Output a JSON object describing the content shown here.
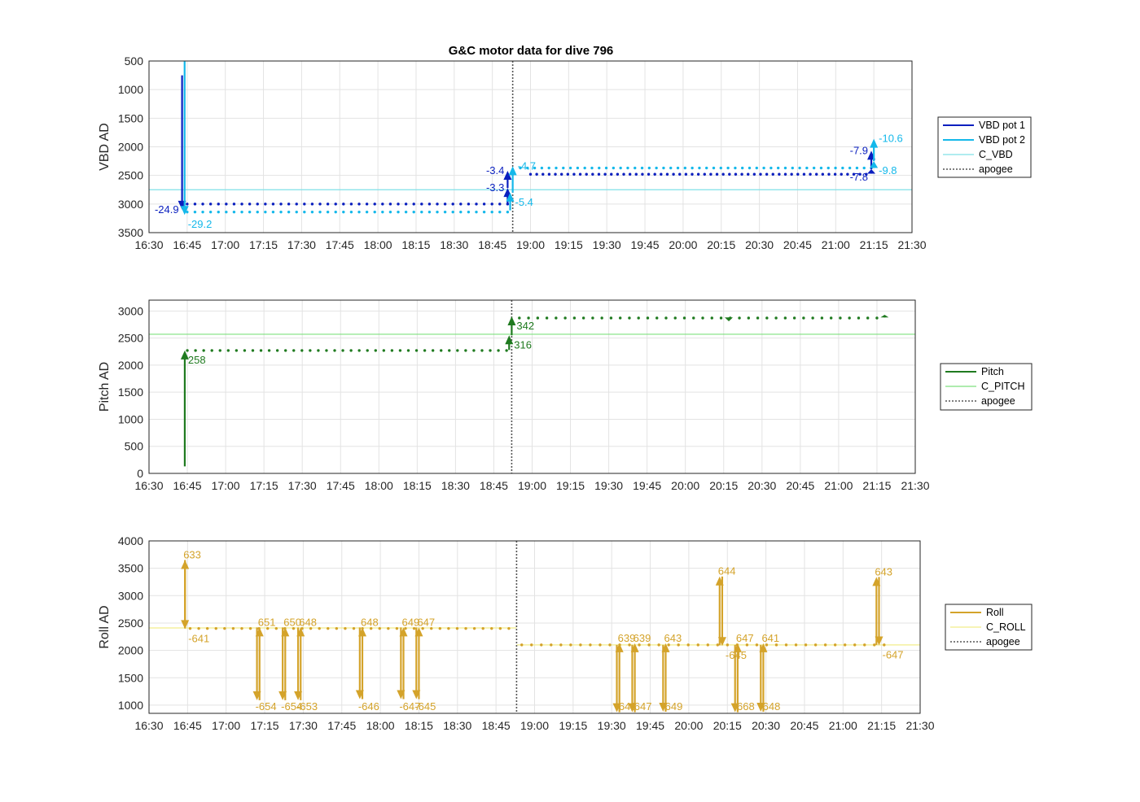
{
  "colors": {
    "vbd_pot1": "#0a1fbf",
    "vbd_pot2": "#14b8ea",
    "c_vbd": "#7fe0e8",
    "pitch": "#1f7a1f",
    "c_pitch": "#7ee07e",
    "roll": "#d4a32a",
    "c_roll": "#f2ee8a",
    "apogee": "#555555",
    "grid": "#e3e3e3"
  },
  "chart_data": [
    {
      "type": "line",
      "title": "G&C motor data for dive 796",
      "ylabel": "VBD AD",
      "xlabel": "",
      "xlim": [
        "16:30",
        "21:30"
      ],
      "xticks": [
        "16:30",
        "16:45",
        "17:00",
        "17:15",
        "17:30",
        "17:45",
        "18:00",
        "18:15",
        "18:30",
        "18:45",
        "19:00",
        "19:15",
        "19:30",
        "19:45",
        "20:00",
        "20:15",
        "20:30",
        "20:45",
        "21:00",
        "21:15",
        "21:30"
      ],
      "ylim": [
        500,
        3500
      ],
      "y_reversed": true,
      "yticks": [
        "500",
        "1000",
        "1500",
        "2000",
        "2500",
        "3000",
        "3500"
      ],
      "grid": true,
      "legend_position": "right",
      "legend": [
        "VBD pot 1",
        "VBD pot 2",
        "C_VBD",
        "apogee"
      ],
      "apogee_time": "18:53",
      "series": [
        {
          "name": "VBD pot 1",
          "color_key": "vbd_pot1",
          "dots": {
            "from": "16:45",
            "to": "18:51",
            "value": 3000,
            "count": 42
          },
          "dots2": {
            "from": "19:00",
            "to": "21:12",
            "value": 2480,
            "count": 55
          }
        },
        {
          "name": "VBD pot 2",
          "color_key": "vbd_pot2",
          "dots": {
            "from": "16:45",
            "to": "18:51",
            "value": 3140,
            "count": 42
          },
          "dots2": {
            "from": "18:56",
            "to": "21:14",
            "value": 2370,
            "count": 50
          }
        },
        {
          "name": "C_VBD",
          "color_key": "c_vbd",
          "hline": 2750
        }
      ],
      "moves": [
        {
          "series": "VBD pot 1",
          "time": "16:43",
          "from": 750,
          "to": 3100,
          "label": "-24.9",
          "label_side": "left"
        },
        {
          "series": "VBD pot 2",
          "time": "16:44",
          "from": 500,
          "to": 3190,
          "label": "-29.2",
          "label_side": "below"
        },
        {
          "series": "VBD pot 1",
          "time": "18:51",
          "from": 3000,
          "to": 2720,
          "label": "-3.3",
          "label_side": "left"
        },
        {
          "series": "VBD pot 1",
          "time": "18:51",
          "from": 2720,
          "to": 2420,
          "label": "-3.4",
          "label_side": "left"
        },
        {
          "series": "VBD pot 2",
          "time": "18:52",
          "from": 3110,
          "to": 2800,
          "label": "-5.4",
          "label_side": "right_low"
        },
        {
          "series": "VBD pot 2",
          "time": "18:53",
          "from": 2800,
          "to": 2340,
          "label": "-4.7",
          "label_side": "right"
        },
        {
          "series": "VBD pot 1",
          "time": "21:14",
          "from": 2470,
          "to": 2390,
          "label": "-7.8",
          "label_side": "left_low"
        },
        {
          "series": "VBD pot 1",
          "time": "21:14",
          "from": 2390,
          "to": 2070,
          "label": "-7.9",
          "label_side": "left"
        },
        {
          "series": "VBD pot 2",
          "time": "21:15",
          "from": 2370,
          "to": 2250,
          "label": "-9.8",
          "label_side": "right_low"
        },
        {
          "series": "VBD pot 2",
          "time": "21:15",
          "from": 2250,
          "to": 1860,
          "label": "-10.6",
          "label_side": "right"
        }
      ]
    },
    {
      "type": "line",
      "title": "",
      "ylabel": "Pitch AD",
      "xlabel": "",
      "xlim": [
        "16:30",
        "21:30"
      ],
      "xticks": [
        "16:30",
        "16:45",
        "17:00",
        "17:15",
        "17:30",
        "17:45",
        "18:00",
        "18:15",
        "18:30",
        "18:45",
        "19:00",
        "19:15",
        "19:30",
        "19:45",
        "20:00",
        "20:15",
        "20:30",
        "20:45",
        "21:00",
        "21:15",
        "21:30"
      ],
      "ylim": [
        0,
        3200
      ],
      "y_reversed": false,
      "yticks": [
        "0",
        "500",
        "1000",
        "1500",
        "2000",
        "2500",
        "3000"
      ],
      "grid": true,
      "legend_position": "right",
      "legend": [
        "Pitch",
        "C_PITCH",
        "apogee"
      ],
      "apogee_time": "18:52",
      "series": [
        {
          "name": "Pitch",
          "color_key": "pitch",
          "dots": {
            "from": "16:45",
            "to": "18:50",
            "value": 2270,
            "count": 40
          },
          "dots2": {
            "from": "18:55",
            "to": "21:15",
            "value": 2870,
            "count": 40
          }
        },
        {
          "name": "C_PITCH",
          "color_key": "c_pitch",
          "hline": 2570
        }
      ],
      "moves": [
        {
          "series": "Pitch",
          "time": "16:44",
          "from": 130,
          "to": 2270,
          "label": "258",
          "label_side": "below"
        },
        {
          "series": "Pitch",
          "time": "18:51",
          "from": 2280,
          "to": 2550,
          "label": "316",
          "label_side": "right_low"
        },
        {
          "series": "Pitch",
          "time": "18:52",
          "from": 2550,
          "to": 2900,
          "label": "342",
          "label_side": "right_low"
        },
        {
          "series": "Pitch",
          "time": "20:17",
          "from": 2880,
          "to": 2810,
          "label": "",
          "label_side": "none"
        },
        {
          "series": "Pitch",
          "time": "21:18",
          "from": 2880,
          "to": 2930,
          "label": "",
          "label_side": "none"
        }
      ]
    },
    {
      "type": "line",
      "title": "",
      "ylabel": "Roll AD",
      "xlabel": "",
      "xlim": [
        "16:30",
        "21:30"
      ],
      "xticks": [
        "16:30",
        "16:45",
        "17:00",
        "17:15",
        "17:30",
        "17:45",
        "18:00",
        "18:15",
        "18:30",
        "18:45",
        "19:00",
        "19:15",
        "19:30",
        "19:45",
        "20:00",
        "20:15",
        "20:30",
        "20:45",
        "21:00",
        "21:15",
        "21:30"
      ],
      "ylim": [
        850,
        4000
      ],
      "y_reversed": false,
      "yticks": [
        "1000",
        "1500",
        "2000",
        "2500",
        "3000",
        "3500",
        "4000"
      ],
      "grid": true,
      "legend_position": "right",
      "legend": [
        "Roll",
        "C_ROLL",
        "apogee"
      ],
      "apogee_time": "18:53",
      "series": [
        {
          "name": "Roll",
          "color_key": "roll",
          "dots": {
            "from": "16:46",
            "to": "18:50",
            "value": 2400,
            "count": 38
          },
          "dots2": {
            "from": "18:55",
            "to": "21:16",
            "value": 2100,
            "count": 38
          }
        },
        {
          "name": "C_ROLL",
          "color_key": "c_roll",
          "hline": 2410,
          "hline_until": "18:53",
          "hline2": 2100
        }
      ],
      "moves": [
        {
          "series": "Roll",
          "time": "16:44",
          "from": 2400,
          "to": 3650,
          "label": "633",
          "label_side": "top"
        },
        {
          "series": "Roll",
          "time": "16:44",
          "from": 3650,
          "to": 2390,
          "label": "-641",
          "label_side": "below"
        },
        {
          "series": "Roll",
          "time": "17:12",
          "from": 2420,
          "to": 1090,
          "label": "-654",
          "label_side": "bottom"
        },
        {
          "series": "Roll",
          "time": "17:13",
          "from": 1090,
          "to": 2420,
          "label": "651",
          "label_side": "top"
        },
        {
          "series": "Roll",
          "time": "17:22",
          "from": 2420,
          "to": 1090,
          "label": "-654",
          "label_side": "bottom"
        },
        {
          "series": "Roll",
          "time": "17:23",
          "from": 1090,
          "to": 2420,
          "label": "650",
          "label_side": "top"
        },
        {
          "series": "Roll",
          "time": "17:28",
          "from": 2420,
          "to": 1090,
          "label": "-653",
          "label_side": "bottom"
        },
        {
          "series": "Roll",
          "time": "17:29",
          "from": 1090,
          "to": 2420,
          "label": "648",
          "label_side": "top"
        },
        {
          "series": "Roll",
          "time": "17:52",
          "from": 2420,
          "to": 1110,
          "label": "-646",
          "label_side": "bottom"
        },
        {
          "series": "Roll",
          "time": "17:53",
          "from": 1110,
          "to": 2420,
          "label": "648",
          "label_side": "top"
        },
        {
          "series": "Roll",
          "time": "18:08",
          "from": 2420,
          "to": 1110,
          "label": "-647",
          "label_side": "bottom"
        },
        {
          "series": "Roll",
          "time": "18:09",
          "from": 1110,
          "to": 2420,
          "label": "649",
          "label_side": "top"
        },
        {
          "series": "Roll",
          "time": "18:14",
          "from": 2420,
          "to": 1110,
          "label": "-645",
          "label_side": "bottom"
        },
        {
          "series": "Roll",
          "time": "18:15",
          "from": 1110,
          "to": 2420,
          "label": "647",
          "label_side": "top"
        },
        {
          "series": "Roll",
          "time": "19:32",
          "from": 2100,
          "to": 870,
          "label": "-648",
          "label_side": "bottom"
        },
        {
          "series": "Roll",
          "time": "19:33",
          "from": 870,
          "to": 2130,
          "label": "639",
          "label_side": "top"
        },
        {
          "series": "Roll",
          "time": "19:38",
          "from": 2100,
          "to": 870,
          "label": "-647",
          "label_side": "bottom"
        },
        {
          "series": "Roll",
          "time": "19:39",
          "from": 870,
          "to": 2130,
          "label": "639",
          "label_side": "top"
        },
        {
          "series": "Roll",
          "time": "19:50",
          "from": 2100,
          "to": 880,
          "label": "-649",
          "label_side": "bottom"
        },
        {
          "series": "Roll",
          "time": "19:51",
          "from": 880,
          "to": 2130,
          "label": "643",
          "label_side": "top"
        },
        {
          "series": "Roll",
          "time": "20:12",
          "from": 2090,
          "to": 3350,
          "label": "644",
          "label_side": "top"
        },
        {
          "series": "Roll",
          "time": "20:13",
          "from": 3350,
          "to": 2080,
          "label": "-645",
          "label_side": "below"
        },
        {
          "series": "Roll",
          "time": "20:18",
          "from": 2100,
          "to": 870,
          "label": "-668",
          "label_side": "bottom"
        },
        {
          "series": "Roll",
          "time": "20:19",
          "from": 870,
          "to": 2130,
          "label": "647",
          "label_side": "top"
        },
        {
          "series": "Roll",
          "time": "20:28",
          "from": 2100,
          "to": 880,
          "label": "-648",
          "label_side": "bottom"
        },
        {
          "series": "Roll",
          "time": "20:29",
          "from": 880,
          "to": 2130,
          "label": "641",
          "label_side": "top"
        },
        {
          "series": "Roll",
          "time": "21:13",
          "from": 2100,
          "to": 3340,
          "label": "643",
          "label_side": "top"
        },
        {
          "series": "Roll",
          "time": "21:14",
          "from": 3340,
          "to": 2090,
          "label": "-647",
          "label_side": "below"
        }
      ]
    }
  ]
}
